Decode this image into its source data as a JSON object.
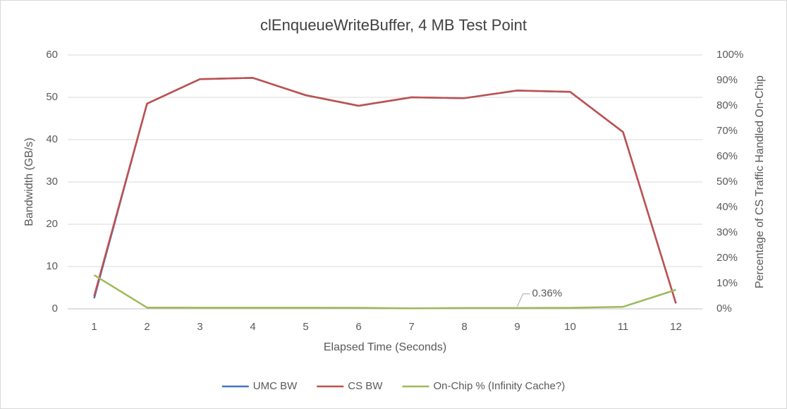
{
  "chart_data": {
    "type": "line",
    "title": "clEnqueueWriteBuffer, 4 MB Test Point",
    "x_label": "Elapsed Time (Seconds)",
    "y_label": "Bandwidth (GB/s)",
    "y2_label": "Percentage of CS Traffic Handled On-Chip",
    "categories": [
      "1",
      "2",
      "3",
      "4",
      "5",
      "6",
      "7",
      "8",
      "9",
      "10",
      "11",
      "12"
    ],
    "ylim": [
      0,
      60
    ],
    "yticks": [
      0,
      10,
      20,
      30,
      40,
      50,
      60
    ],
    "y2lim": [
      0,
      100
    ],
    "y2ticks": [
      {
        "value": 0,
        "label": "0%"
      },
      {
        "value": 10,
        "label": "10%"
      },
      {
        "value": 20,
        "label": "20%"
      },
      {
        "value": 30,
        "label": "30%"
      },
      {
        "value": 40,
        "label": "40%"
      },
      {
        "value": 50,
        "label": "50%"
      },
      {
        "value": 60,
        "label": "60%"
      },
      {
        "value": 70,
        "label": "70%"
      },
      {
        "value": 80,
        "label": "80%"
      },
      {
        "value": 90,
        "label": "90%"
      },
      {
        "value": 100,
        "label": "100%"
      }
    ],
    "grid": true,
    "legend": "bottom",
    "series": [
      {
        "name": "UMC BW",
        "color": "#4472c4",
        "values": [
          2.5,
          48.5,
          54.3,
          54.6,
          50.5,
          48.0,
          50.0,
          49.8,
          51.6,
          51.3,
          41.8,
          1.3
        ]
      },
      {
        "name": "CS BW",
        "color": "#c0504d",
        "values": [
          3.0,
          48.5,
          54.3,
          54.6,
          50.5,
          48.0,
          50.0,
          49.8,
          51.6,
          51.3,
          41.8,
          1.3
        ]
      },
      {
        "name": "On-Chip % (Infinity Cache?)",
        "color": "#9bbb59",
        "axis": "y2",
        "values": [
          13.3,
          0.5,
          0.45,
          0.45,
          0.45,
          0.4,
          0.2,
          0.35,
          0.36,
          0.4,
          0.8,
          7.5
        ],
        "value_labels": [
          null,
          null,
          null,
          null,
          null,
          null,
          null,
          null,
          "0.36%",
          null,
          null,
          null
        ]
      }
    ]
  }
}
